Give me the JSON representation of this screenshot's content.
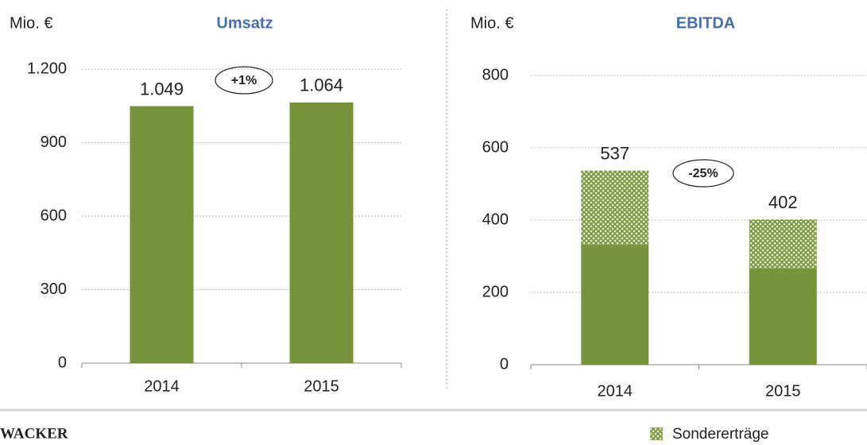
{
  "chart_data": [
    {
      "type": "bar",
      "title": "Umsatz",
      "ylabel": "Mio. €",
      "categories": [
        "2014",
        "2015"
      ],
      "values": [
        1049,
        1064
      ],
      "value_labels": [
        "1.049",
        "1.064"
      ],
      "color": "#77933c",
      "ylim": [
        0,
        1200
      ],
      "yticks": [
        0,
        300,
        600,
        900,
        {
          "value": 1200,
          "label": "1.200"
        }
      ],
      "grid": true,
      "annotation": "+1%"
    },
    {
      "type": "stacked_bar",
      "title": "EBITDA",
      "ylabel": "Mio. €",
      "categories": [
        "2014",
        "2015"
      ],
      "series": [
        {
          "color": "#77933c",
          "values": [
            332,
            266
          ]
        },
        {
          "name": "Sondererträge",
          "color": "#77933c",
          "pattern": "crosshatch",
          "values": [
            205,
            136
          ]
        }
      ],
      "totals": [
        537,
        402
      ],
      "ylim": [
        0,
        800
      ],
      "yticks": [
        0,
        200,
        400,
        600,
        800
      ],
      "grid": true,
      "annotation": "-25%"
    }
  ],
  "logo": "WACKER"
}
